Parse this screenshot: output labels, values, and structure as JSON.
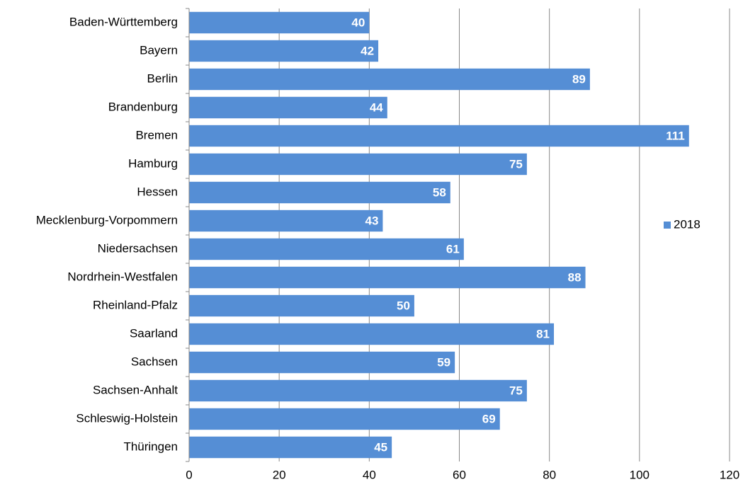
{
  "chart_data": {
    "type": "bar",
    "orientation": "horizontal",
    "categories": [
      "Baden-Württemberg",
      "Bayern",
      "Berlin",
      "Brandenburg",
      "Bremen",
      "Hamburg",
      "Hessen",
      "Mecklenburg-Vorpommern",
      "Niedersachsen",
      "Nordrhein-Westfalen",
      "Rheinland-Pfalz",
      "Saarland",
      "Sachsen",
      "Sachsen-Anhalt",
      "Schleswig-Holstein",
      "Thüringen"
    ],
    "series": [
      {
        "name": "2018",
        "color": "#558ed5",
        "values": [
          40,
          42,
          89,
          44,
          111,
          75,
          58,
          43,
          61,
          88,
          50,
          81,
          59,
          75,
          69,
          45
        ]
      }
    ],
    "xlim": [
      0,
      120
    ],
    "xticks": [
      0,
      20,
      40,
      60,
      80,
      100,
      120
    ],
    "grid": true,
    "legend": "right"
  }
}
